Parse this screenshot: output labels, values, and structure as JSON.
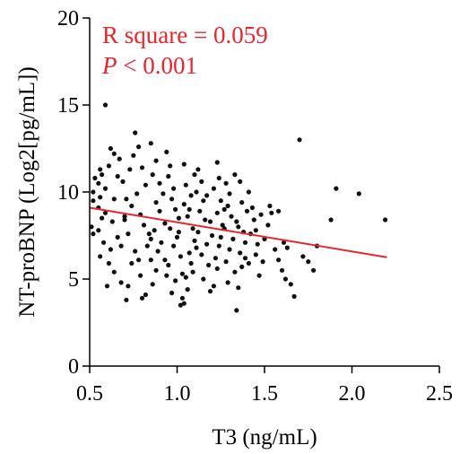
{
  "chart_data": {
    "type": "scatter",
    "xlabel": "T3 (ng/mL)",
    "ylabel": "NT-proBNP (Log2[pg/mL])",
    "xlim": [
      0.5,
      2.5
    ],
    "ylim": [
      0,
      20
    ],
    "xticks": [
      0.5,
      1.0,
      1.5,
      2.0,
      2.5
    ],
    "xtick_labels": [
      "0.5",
      "1.0",
      "1.5",
      "2.0",
      "2.5"
    ],
    "yticks": [
      0,
      5,
      10,
      15,
      20
    ],
    "ytick_labels": [
      "0",
      "5",
      "10",
      "15",
      "20"
    ],
    "annotations": {
      "r_square": "R square = 0.059",
      "p_symbol": "P",
      "p_rest": " < 0.001"
    },
    "colors": {
      "points": "#111111",
      "fit_line": "#e8262d",
      "annotation": "#e8262d"
    },
    "grid": false,
    "fit_line": {
      "x": [
        0.5,
        2.2
      ],
      "y": [
        9.1,
        6.25
      ]
    },
    "points": [
      [
        0.59,
        15.0
      ],
      [
        0.62,
        12.5
      ],
      [
        0.64,
        12.2
      ],
      [
        0.67,
        11.9
      ],
      [
        0.61,
        11.5
      ],
      [
        0.56,
        11.3
      ],
      [
        0.57,
        11.0
      ],
      [
        0.53,
        10.8
      ],
      [
        0.55,
        10.5
      ],
      [
        0.59,
        10.2
      ],
      [
        0.52,
        10.0
      ],
      [
        0.56,
        9.7
      ],
      [
        0.52,
        9.5
      ],
      [
        0.55,
        9.1
      ],
      [
        0.59,
        8.8
      ],
      [
        0.57,
        8.5
      ],
      [
        0.63,
        8.3
      ],
      [
        0.51,
        8.0
      ],
      [
        0.55,
        7.8
      ],
      [
        0.52,
        7.6
      ],
      [
        0.58,
        7.1
      ],
      [
        0.62,
        6.7
      ],
      [
        0.56,
        6.3
      ],
      [
        0.61,
        5.9
      ],
      [
        0.64,
        5.4
      ],
      [
        0.6,
        4.6
      ],
      [
        0.68,
        4.8
      ],
      [
        0.66,
        7.4
      ],
      [
        0.7,
        8.6
      ],
      [
        0.71,
        9.6
      ],
      [
        0.69,
        10.6
      ],
      [
        0.73,
        11.3
      ],
      [
        0.75,
        12.1
      ],
      [
        0.76,
        13.4
      ],
      [
        0.78,
        12.6
      ],
      [
        0.8,
        11.4
      ],
      [
        0.82,
        10.4
      ],
      [
        0.77,
        9.9
      ],
      [
        0.74,
        9.2
      ],
      [
        0.79,
        8.7
      ],
      [
        0.81,
        8.1
      ],
      [
        0.72,
        7.6
      ],
      [
        0.85,
        7.3
      ],
      [
        0.83,
        6.9
      ],
      [
        0.76,
        6.6
      ],
      [
        0.74,
        5.9
      ],
      [
        0.79,
        5.2
      ],
      [
        0.72,
        4.6
      ],
      [
        0.82,
        4.1
      ],
      [
        0.71,
        3.8
      ],
      [
        0.8,
        3.9
      ],
      [
        0.86,
        4.7
      ],
      [
        0.88,
        5.5
      ],
      [
        0.85,
        6.1
      ],
      [
        0.89,
        6.6
      ],
      [
        0.91,
        7.1
      ],
      [
        0.87,
        7.8
      ],
      [
        0.93,
        8.2
      ],
      [
        0.9,
        8.9
      ],
      [
        0.88,
        9.4
      ],
      [
        0.92,
        9.9
      ],
      [
        0.9,
        10.5
      ],
      [
        0.86,
        11.0
      ],
      [
        0.88,
        11.8
      ],
      [
        0.85,
        12.8
      ],
      [
        0.94,
        12.3
      ],
      [
        0.96,
        11.5
      ],
      [
        0.95,
        10.9
      ],
      [
        0.98,
        10.2
      ],
      [
        0.97,
        9.6
      ],
      [
        0.99,
        9.0
      ],
      [
        1.01,
        8.5
      ],
      [
        0.96,
        7.9
      ],
      [
        1.0,
        7.4
      ],
      [
        0.98,
        6.9
      ],
      [
        1.02,
        6.3
      ],
      [
        0.95,
        5.8
      ],
      [
        1.03,
        5.3
      ],
      [
        0.99,
        4.9
      ],
      [
        0.97,
        4.2
      ],
      [
        1.03,
        3.9
      ],
      [
        1.02,
        3.5
      ],
      [
        1.04,
        3.6
      ],
      [
        1.06,
        4.4
      ],
      [
        1.05,
        5.1
      ],
      [
        1.08,
        5.9
      ],
      [
        1.07,
        6.5
      ],
      [
        1.1,
        7.2
      ],
      [
        1.09,
        7.9
      ],
      [
        1.06,
        8.6
      ],
      [
        1.04,
        9.3
      ],
      [
        1.08,
        9.8
      ],
      [
        1.05,
        10.4
      ],
      [
        1.1,
        11.0
      ],
      [
        1.04,
        11.6
      ],
      [
        1.12,
        11.3
      ],
      [
        1.14,
        10.6
      ],
      [
        1.11,
        10.0
      ],
      [
        1.15,
        9.5
      ],
      [
        1.13,
        8.9
      ],
      [
        1.16,
        8.4
      ],
      [
        1.12,
        7.7
      ],
      [
        1.17,
        7.0
      ],
      [
        1.14,
        6.4
      ],
      [
        1.18,
        5.8
      ],
      [
        1.15,
        5.0
      ],
      [
        1.19,
        4.3
      ],
      [
        1.21,
        4.6
      ],
      [
        1.23,
        5.6
      ],
      [
        1.22,
        6.2
      ],
      [
        1.24,
        6.9
      ],
      [
        1.2,
        7.5
      ],
      [
        1.26,
        8.1
      ],
      [
        1.23,
        8.8
      ],
      [
        1.25,
        9.5
      ],
      [
        1.21,
        10.2
      ],
      [
        1.24,
        10.8
      ],
      [
        1.23,
        11.7
      ],
      [
        1.28,
        10.5
      ],
      [
        1.3,
        9.9
      ],
      [
        1.29,
        9.2
      ],
      [
        1.31,
        8.6
      ],
      [
        1.27,
        7.9
      ],
      [
        1.32,
        7.3
      ],
      [
        1.3,
        6.7
      ],
      [
        1.28,
        6.0
      ],
      [
        1.33,
        5.4
      ],
      [
        1.29,
        4.8
      ],
      [
        1.34,
        3.2
      ],
      [
        1.35,
        4.5
      ],
      [
        1.37,
        5.7
      ],
      [
        1.36,
        6.5
      ],
      [
        1.39,
        7.1
      ],
      [
        1.38,
        7.7
      ],
      [
        1.34,
        8.3
      ],
      [
        1.4,
        8.9
      ],
      [
        1.37,
        9.4
      ],
      [
        1.41,
        10.0
      ],
      [
        1.36,
        10.6
      ],
      [
        1.33,
        11.0
      ],
      [
        1.43,
        9.1
      ],
      [
        1.44,
        8.4
      ],
      [
        1.42,
        7.6
      ],
      [
        1.46,
        7.0
      ],
      [
        1.45,
        6.4
      ],
      [
        1.41,
        5.9
      ],
      [
        1.47,
        5.2
      ],
      [
        1.49,
        6.0
      ],
      [
        1.5,
        7.3
      ],
      [
        1.52,
        8.1
      ],
      [
        1.54,
        8.8
      ],
      [
        1.56,
        6.7
      ],
      [
        1.58,
        6.1
      ],
      [
        1.6,
        5.5
      ],
      [
        1.61,
        7.1
      ],
      [
        1.63,
        6.8
      ],
      [
        1.65,
        4.7
      ],
      [
        1.67,
        4.0
      ],
      [
        1.62,
        5.0
      ],
      [
        1.7,
        13.0
      ],
      [
        1.72,
        6.3
      ],
      [
        1.75,
        6.0
      ],
      [
        1.78,
        5.5
      ],
      [
        1.8,
        6.9
      ],
      [
        1.88,
        8.4
      ],
      [
        1.91,
        10.2
      ],
      [
        2.04,
        9.9
      ],
      [
        2.19,
        8.4
      ],
      [
        1.58,
        8.9
      ],
      [
        1.48,
        8.7
      ],
      [
        1.53,
        9.2
      ],
      [
        0.93,
        6.1
      ],
      [
        1.07,
        9.0
      ],
      [
        1.17,
        9.8
      ],
      [
        1.27,
        9.0
      ],
      [
        1.39,
        6.2
      ],
      [
        0.84,
        7.6
      ],
      [
        0.64,
        9.6
      ],
      [
        0.7,
        8.4
      ],
      [
        0.66,
        10.9
      ],
      [
        1.01,
        7.7
      ],
      [
        1.11,
        6.8
      ],
      [
        1.19,
        8.3
      ],
      [
        1.09,
        5.4
      ],
      [
        0.94,
        5.2
      ],
      [
        1.25,
        7.4
      ],
      [
        1.35,
        8.0
      ],
      [
        1.45,
        7.8
      ],
      [
        0.78,
        6.1
      ],
      [
        0.68,
        6.9
      ]
    ]
  }
}
